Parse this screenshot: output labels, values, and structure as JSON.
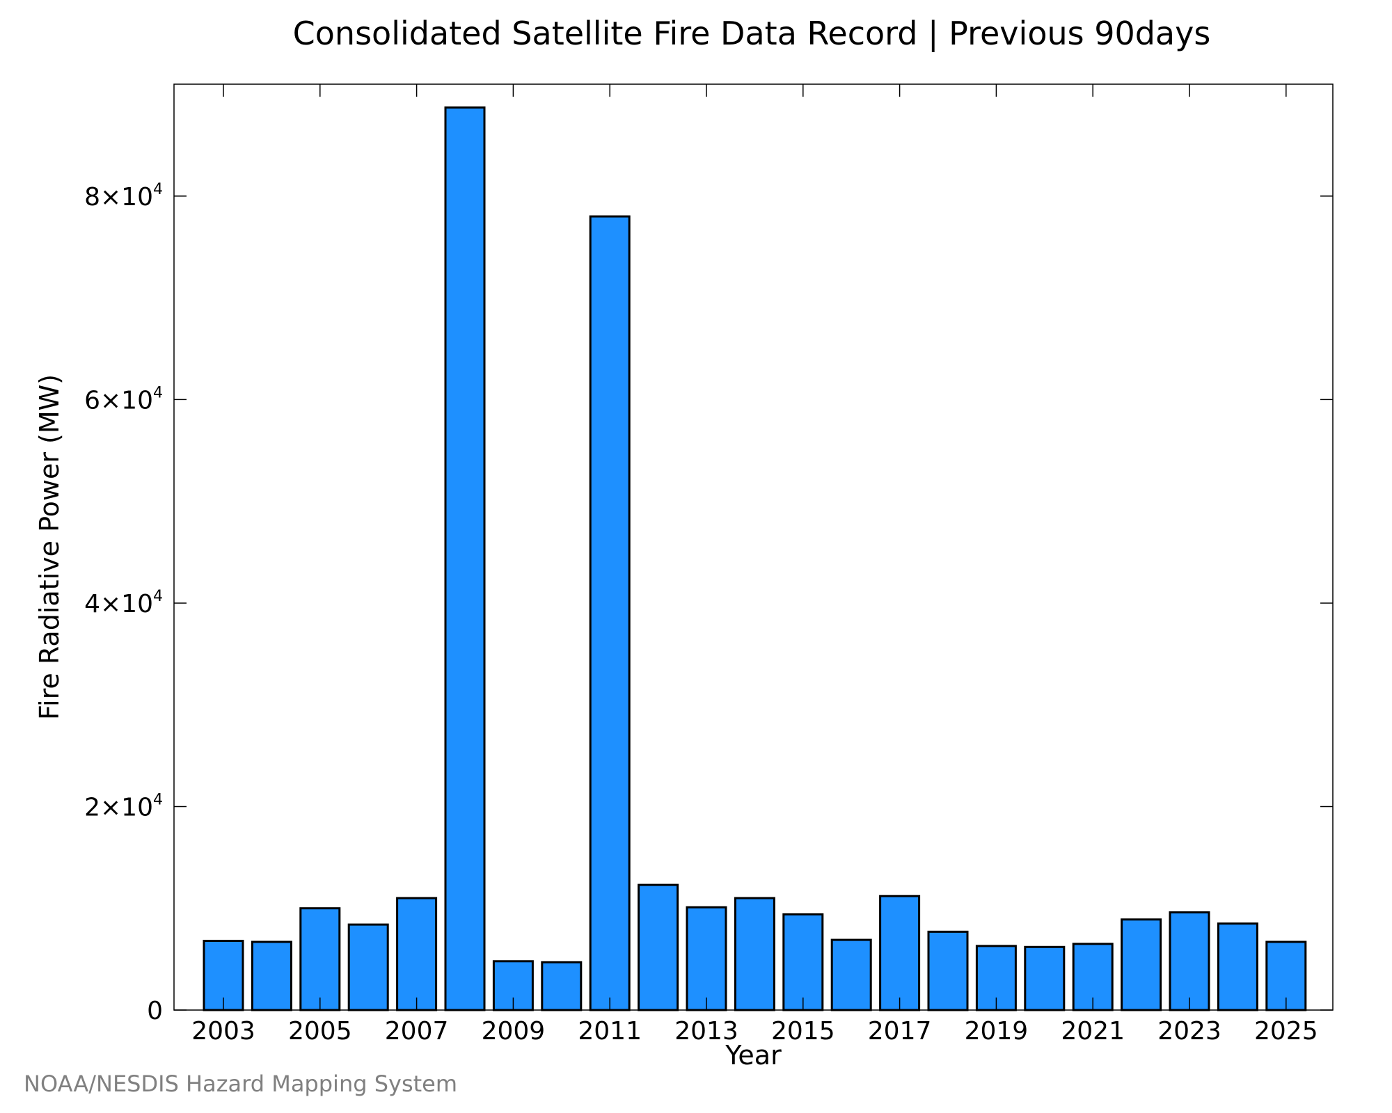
{
  "chart_data": {
    "type": "bar",
    "title": "Consolidated Satellite Fire Data Record | Previous 90days",
    "xlabel": "Year",
    "ylabel": "Fire Radiative Power (MW)",
    "categories": [
      "2003",
      "2004",
      "2005",
      "2006",
      "2007",
      "2008",
      "2009",
      "2010",
      "2011",
      "2012",
      "2013",
      "2014",
      "2015",
      "2016",
      "2017",
      "2018",
      "2019",
      "2020",
      "2021",
      "2022",
      "2023",
      "2024",
      "2025"
    ],
    "values": [
      6800,
      6700,
      10000,
      8400,
      11000,
      88700,
      4800,
      4700,
      78000,
      12300,
      10100,
      11000,
      9400,
      6900,
      11200,
      7700,
      6300,
      6200,
      6500,
      8900,
      9600,
      8500,
      6700
    ],
    "ylim": [
      0,
      91000
    ],
    "yticks": [
      {
        "value": 0,
        "base": "0",
        "exp": ""
      },
      {
        "value": 20000,
        "base": "2×10",
        "exp": "4"
      },
      {
        "value": 40000,
        "base": "4×10",
        "exp": "4"
      },
      {
        "value": 60000,
        "base": "6×10",
        "exp": "4"
      },
      {
        "value": 80000,
        "base": "8×10",
        "exp": "4"
      }
    ],
    "xtick_labels": [
      "2003",
      "2005",
      "2007",
      "2009",
      "2011",
      "2013",
      "2015",
      "2017",
      "2019",
      "2021",
      "2023",
      "2025"
    ],
    "bar_color": "#1e90ff",
    "bar_edge_color": "#000000",
    "grid": false,
    "legend": "none"
  },
  "credit": "NOAA/NESDIS Hazard Mapping System"
}
